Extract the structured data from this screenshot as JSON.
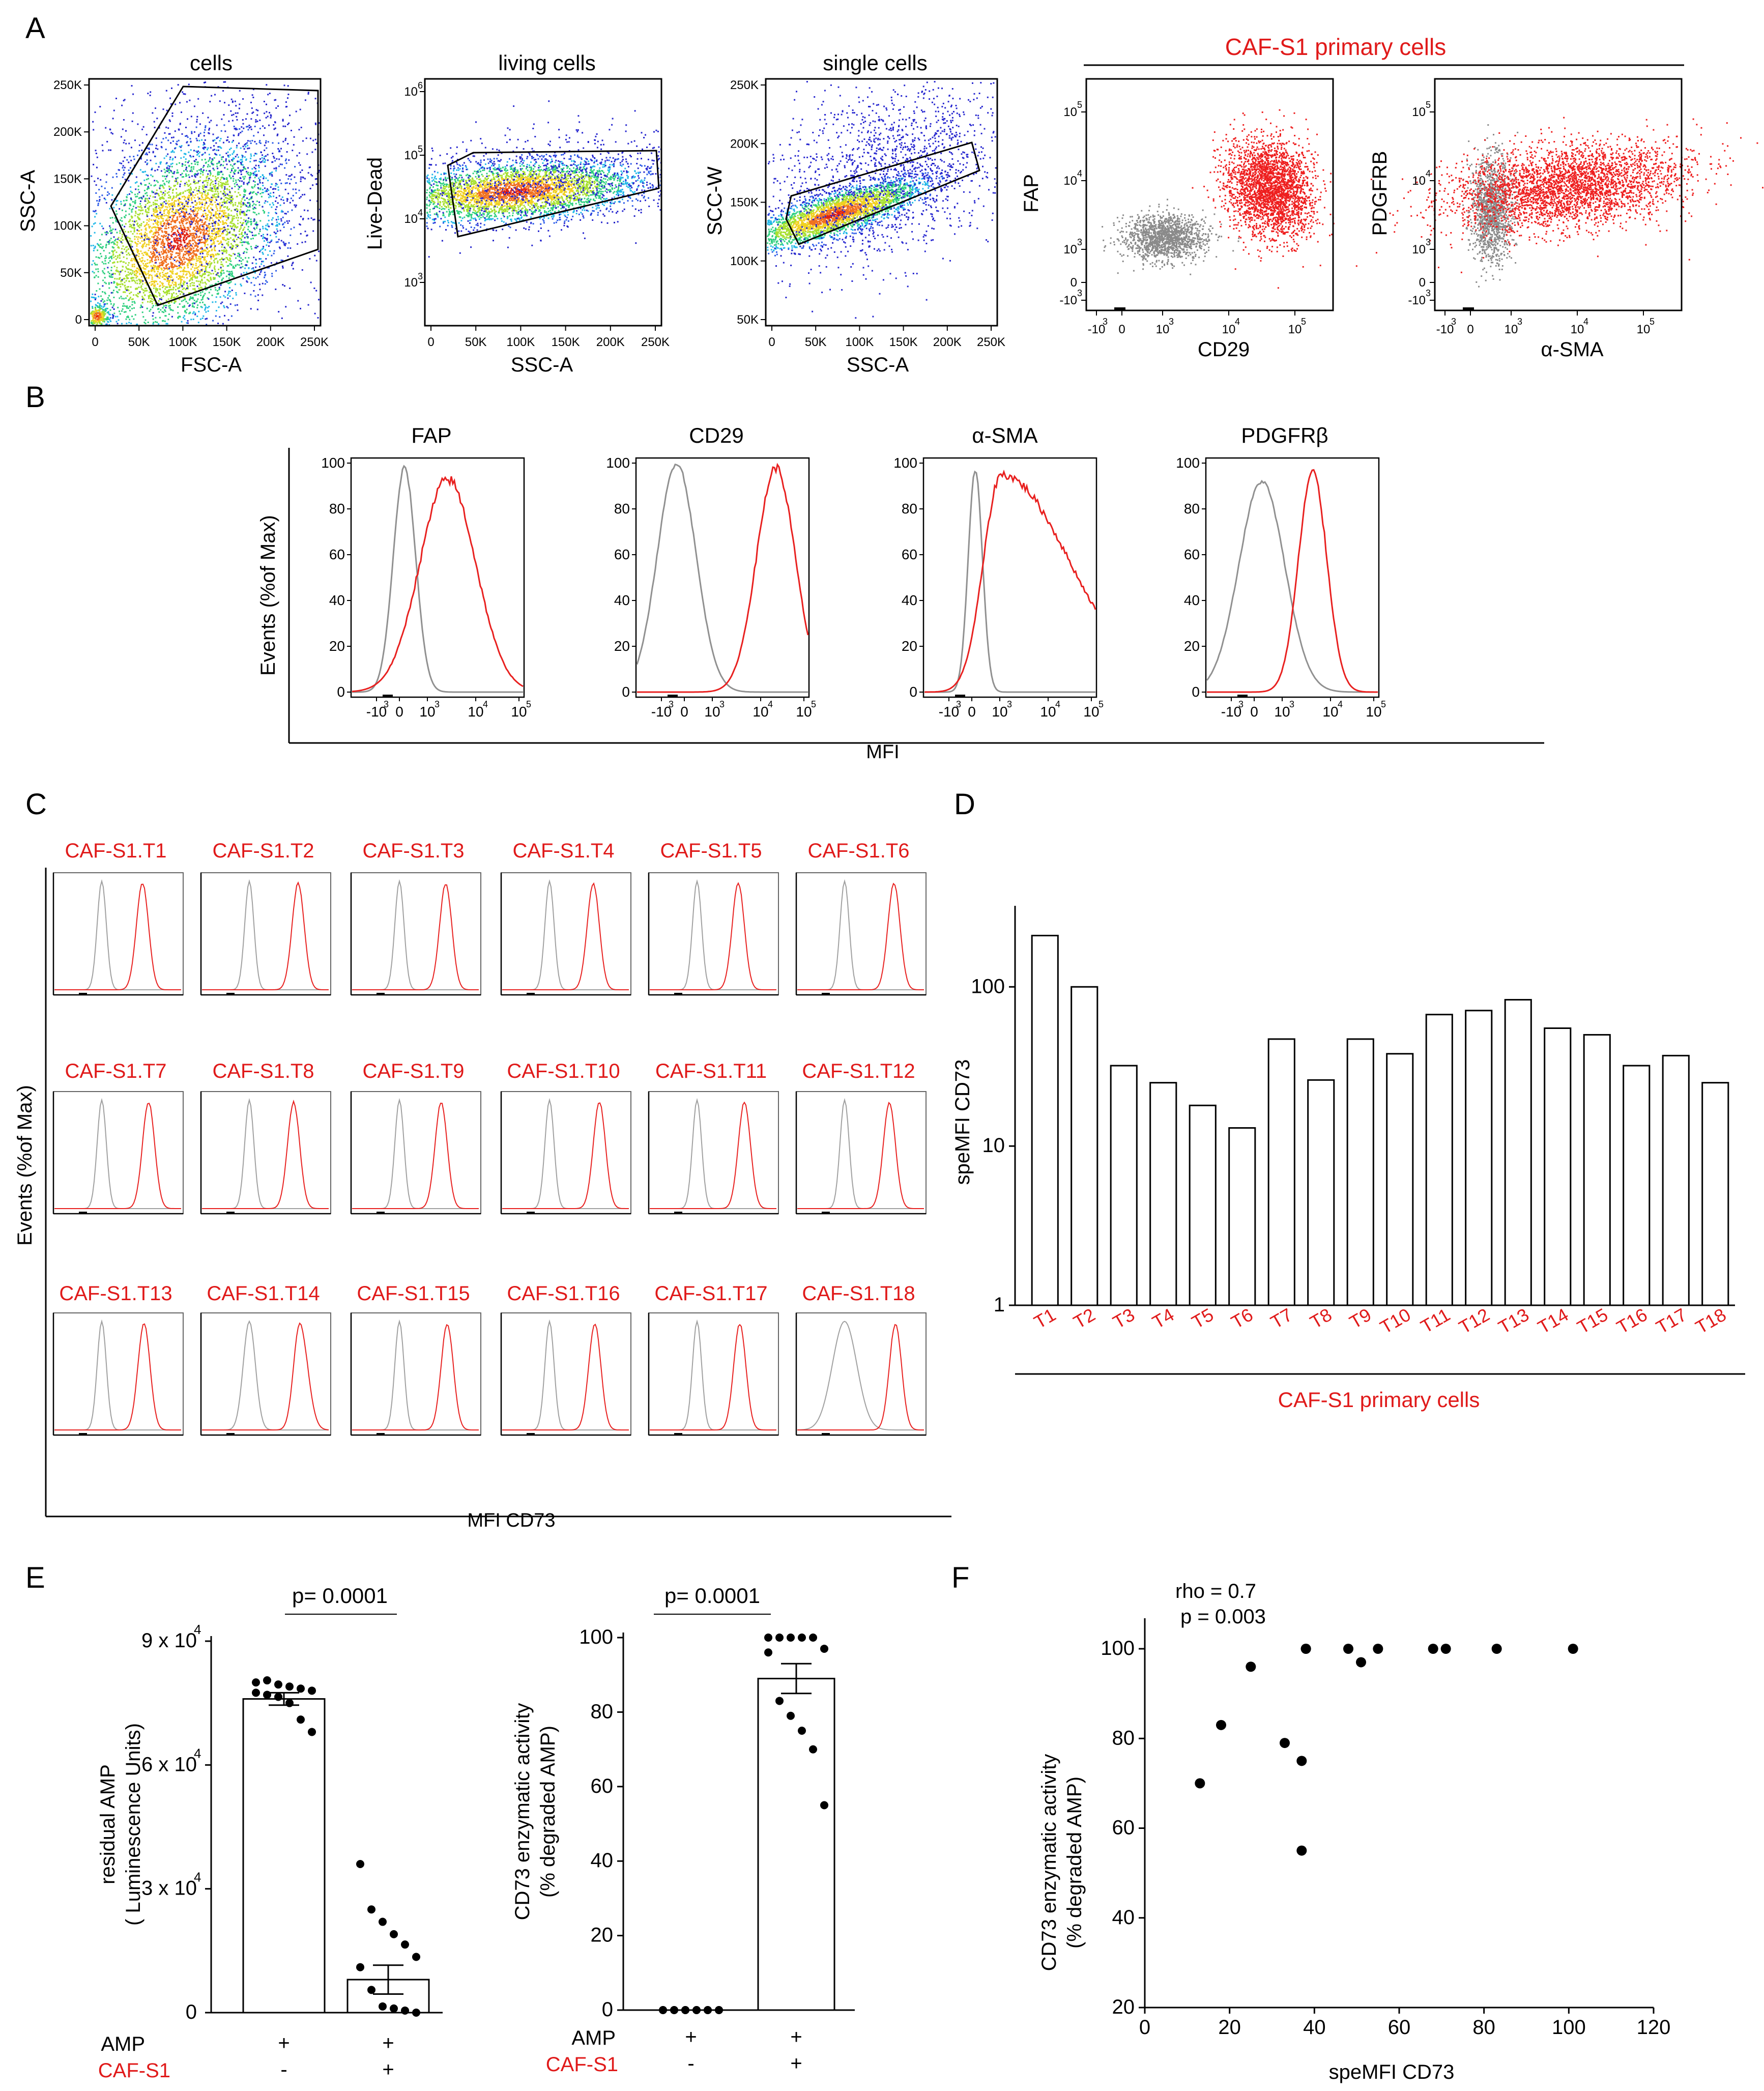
{
  "panels": {
    "A": {
      "letter": "A",
      "gates": [
        {
          "title": "cells",
          "xlabel": "FSC-A",
          "ylabel": "SSC-A",
          "xticks": [
            "0",
            "50K",
            "100K",
            "150K",
            "200K",
            "250K"
          ],
          "yticks": [
            "0",
            "50K",
            "100K",
            "150K",
            "200K",
            "250K"
          ]
        },
        {
          "title": "living cells",
          "xlabel": "SSC-A",
          "ylabel": "Live-Dead",
          "xticks": [
            "0",
            "50K",
            "100K",
            "150K",
            "200K",
            "250K"
          ],
          "yticks": [
            "10",
            "10",
            "10",
            "10"
          ],
          "ytick_exp": [
            "6",
            "5",
            "4",
            "3"
          ]
        },
        {
          "title": "single cells",
          "xlabel": "SSC-A",
          "ylabel": "SCC-W",
          "xticks": [
            "0",
            "50K",
            "100K",
            "150K",
            "200K",
            "250K"
          ],
          "yticks": [
            "50K",
            "100K",
            "150K",
            "200K",
            "250K"
          ]
        }
      ],
      "caf_header": "CAF-S1 primary cells",
      "caf_plots": [
        {
          "xlabel": "CD29",
          "ylabel": "FAP"
        },
        {
          "xlabel": "α-SMA",
          "ylabel": "PDGFRB"
        }
      ],
      "log_ticks": [
        "-10",
        "0",
        "10",
        "10",
        "10"
      ],
      "log_exp": [
        "3",
        "3",
        "4",
        "5"
      ]
    },
    "B": {
      "letter": "B",
      "ylabel": "Events (%of Max)",
      "xlabel": "MFI",
      "titles": [
        "FAP",
        "CD29",
        "α-SMA",
        "PDGFRβ"
      ],
      "yticks": [
        "100",
        "80",
        "60",
        "40",
        "20",
        "0"
      ],
      "xticks": [
        "-10",
        "0",
        "10",
        "10",
        "10"
      ],
      "xtick_exp": [
        "3",
        "3",
        "4",
        "5"
      ]
    },
    "C": {
      "letter": "C",
      "ylabel": "Events (%of Max)",
      "xlabel": "MFI CD73",
      "samples": [
        "CAF-S1.T1",
        "CAF-S1.T2",
        "CAF-S1.T3",
        "CAF-S1.T4",
        "CAF-S1.T5",
        "CAF-S1.T6",
        "CAF-S1.T7",
        "CAF-S1.T8",
        "CAF-S1.T9",
        "CAF-S1.T10",
        "CAF-S1.T11",
        "CAF-S1.T12",
        "CAF-S1.T13",
        "CAF-S1.T14",
        "CAF-S1.T15",
        "CAF-S1.T16",
        "CAF-S1.T17",
        "CAF-S1.T18"
      ]
    },
    "D": {
      "letter": "D"
    },
    "E": {
      "letter": "E",
      "row_labels": {
        "amp": "AMP",
        "caf": "CAF-S1"
      },
      "signs": {
        "plus": "+",
        "minus": "-"
      }
    },
    "F": {
      "letter": "F"
    }
  },
  "chart_data": [
    {
      "id": "D",
      "type": "bar",
      "yscale": "log",
      "categories": [
        "T1",
        "T2",
        "T3",
        "T4",
        "T5",
        "T6",
        "T7",
        "T8",
        "T9",
        "T10",
        "T11",
        "T12",
        "T13",
        "T14",
        "T15",
        "T16",
        "T17",
        "T18"
      ],
      "values": [
        210,
        100,
        32,
        25,
        18,
        13,
        47,
        26,
        47,
        38,
        67,
        71,
        83,
        55,
        50,
        32,
        37,
        25
      ],
      "ylabel": "speMFI CD73",
      "xlabel": "CAF-S1 primary cells",
      "ylim": [
        1,
        300
      ],
      "yticks": [
        "100",
        "10",
        "1"
      ]
    },
    {
      "id": "E1",
      "type": "bar",
      "categories": [
        "AMP",
        "AMP + CAF-S1"
      ],
      "values": [
        76000,
        8000
      ],
      "sem": [
        1500,
        3500
      ],
      "points": [
        [
          80000,
          80500,
          79500,
          79000,
          78500,
          78000,
          77500,
          77000,
          76500,
          75000,
          71000,
          68000
        ],
        [
          36000,
          25000,
          22000,
          19000,
          16500,
          13500,
          11000,
          5500,
          1500,
          1000,
          500,
          0
        ]
      ],
      "ylabel": "residual AMP",
      "ylabel2": "( Luminescence Units)",
      "ylim": [
        0,
        90000
      ],
      "ytick_labels": [
        "9 x 10",
        "6 x 10",
        "3 x 10",
        "0"
      ],
      "ytick_exp": [
        "4",
        "4",
        "4"
      ],
      "pvalue": "p= 0.0001"
    },
    {
      "id": "E2",
      "type": "bar",
      "categories": [
        "AMP",
        "AMP + CAF-S1"
      ],
      "values": [
        0,
        89
      ],
      "sem": [
        0,
        4
      ],
      "points": [
        [
          0,
          0,
          0,
          0,
          0,
          0,
          0,
          0,
          0,
          0,
          0,
          0
        ],
        [
          100,
          100,
          100,
          100,
          100,
          97,
          96,
          83,
          79,
          75,
          70,
          55
        ]
      ],
      "ylabel": "CD73 enzymatic activity",
      "ylabel2": "(% degraded  AMP)",
      "ylim": [
        0,
        100
      ],
      "yticks": [
        "100",
        "80",
        "60",
        "40",
        "20",
        "0"
      ],
      "pvalue": "p= 0.0001"
    },
    {
      "id": "F",
      "type": "scatter",
      "x": [
        13,
        18,
        25,
        33,
        37,
        37,
        38,
        38,
        48,
        51,
        55,
        68,
        71,
        83,
        101
      ],
      "y": [
        70,
        83,
        96,
        79,
        75,
        55,
        100,
        100,
        100,
        97,
        100,
        100,
        100,
        100,
        100
      ],
      "xlabel": "speMFI CD73",
      "ylabel": "CD73 enzymatic activity",
      "ylabel2": "(% degraded  AMP)",
      "xlim": [
        0,
        120
      ],
      "ylim": [
        20,
        100
      ],
      "xticks": [
        "0",
        "20",
        "40",
        "60",
        "80",
        "100",
        "120"
      ],
      "yticks": [
        "20",
        "40",
        "60",
        "80",
        "100"
      ],
      "annotation_rho": "rho = 0.7",
      "annotation_p": "p = 0.003"
    }
  ]
}
